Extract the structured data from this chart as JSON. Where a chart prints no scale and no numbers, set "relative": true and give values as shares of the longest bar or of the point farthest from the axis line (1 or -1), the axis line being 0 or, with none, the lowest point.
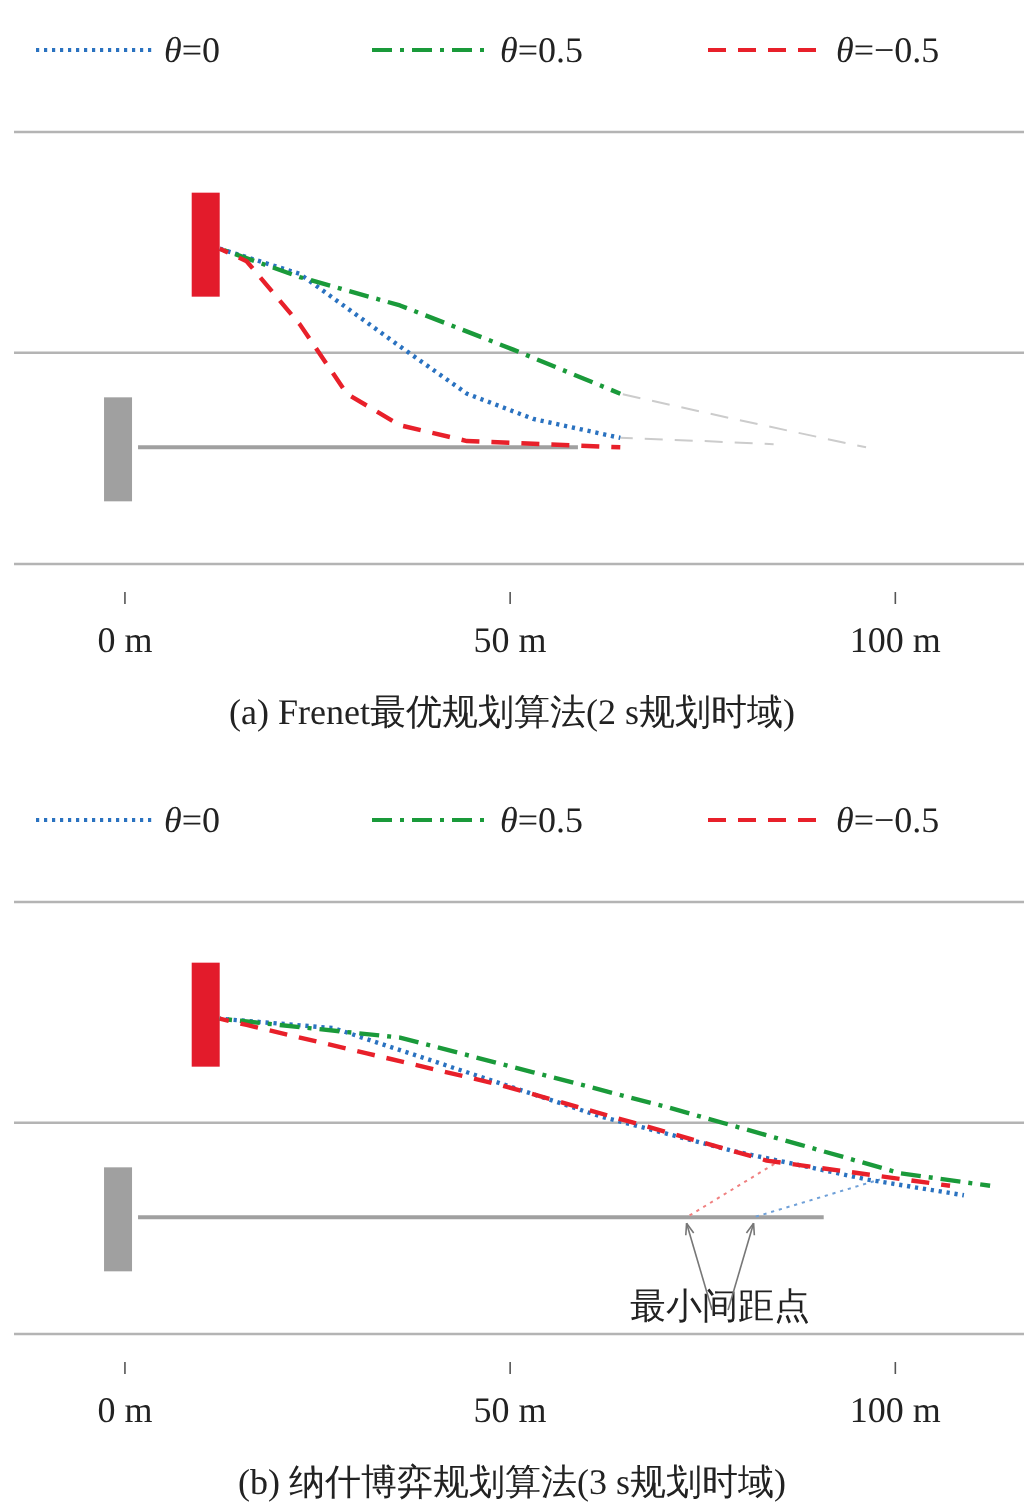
{
  "chart_data": [
    {
      "type": "line",
      "relative": true,
      "title": "(a) Frenet最优规划算法(2 s规划时域)",
      "xlim": [
        -14.4,
        116.7
      ],
      "xticks": [
        {
          "value": 0,
          "label": "0 m"
        },
        {
          "value": 50,
          "label": "50 m"
        },
        {
          "value": 100,
          "label": "100 m"
        }
      ],
      "tick_labels": "x",
      "legend": "top",
      "grid": false,
      "ref_lines": [
        {
          "axis": "y",
          "value": 1.37,
          "color": "#b4b4b4"
        },
        {
          "axis": "y",
          "value": 0.67,
          "color": "#b4b4b4"
        }
      ],
      "series": [
        {
          "name": "θ=0",
          "color": "#2a72c0",
          "line_style": "dotted",
          "x": [
            12.3,
            22.7,
            35.7,
            44.4,
            53,
            64.3
          ],
          "values": [
            1,
            0.92,
            0.69,
            0.54,
            0.46,
            0.4
          ]
        },
        {
          "name": "θ=0.5",
          "color": "#1a9a3a",
          "line_style": "dashdot",
          "x": [
            12.3,
            22.7,
            35.7,
            50.4,
            64.3
          ],
          "values": [
            1,
            0.91,
            0.82,
            0.68,
            0.54
          ]
        },
        {
          "name": "θ=−0.5",
          "color": "#e8202a",
          "line_style": "dashed",
          "x": [
            12.3,
            15.8,
            22.7,
            28.8,
            35.7,
            44.4,
            64.3
          ],
          "values": [
            1,
            0.96,
            0.76,
            0.54,
            0.44,
            0.39,
            0.37
          ]
        },
        {
          "color": "#a0a0a0",
          "line_style": "solid",
          "x": [
            1.7,
            58.8
          ],
          "values": [
            0.37,
            0.37
          ]
        },
        {
          "color": "#cccccc",
          "line_style": "dashed",
          "x": [
            64.3,
            79,
            96.2
          ],
          "values": [
            0.54,
            0.46,
            0.37
          ]
        },
        {
          "color": "#cccccc",
          "line_style": "dashed",
          "x": [
            64.3,
            75,
            84.2
          ],
          "values": [
            0.4,
            0.39,
            0.38
          ]
        }
      ]
    },
    {
      "type": "line",
      "relative": true,
      "title": "(b) 纳什博弈规划算法(3 s规划时域)",
      "xlim": [
        -14.4,
        116.7
      ],
      "xticks": [
        {
          "value": 0,
          "label": "0 m"
        },
        {
          "value": 50,
          "label": "50 m"
        },
        {
          "value": 100,
          "label": "100 m"
        }
      ],
      "tick_labels": "x",
      "legend": "top",
      "grid": false,
      "ref_lines": [
        {
          "axis": "y",
          "value": 1.37,
          "color": "#b4b4b4"
        },
        {
          "axis": "y",
          "value": 0.67,
          "color": "#b4b4b4"
        }
      ],
      "annotations": [
        "最小间距点"
      ],
      "series": [
        {
          "name": "θ=0",
          "color": "#2a72c0",
          "line_style": "dotted",
          "x": [
            12.3,
            27.1,
            44.4,
            61.7,
            79,
            96.3,
            108.9
          ],
          "values": [
            1,
            0.97,
            0.83,
            0.69,
            0.58,
            0.49,
            0.44
          ]
        },
        {
          "name": "θ=0.5",
          "color": "#1a9a3a",
          "line_style": "dashdot",
          "x": [
            12.3,
            35.7,
            53,
            70.3,
            87.7,
            100.6,
            112.3
          ],
          "values": [
            1,
            0.94,
            0.83,
            0.72,
            0.6,
            0.51,
            0.47
          ]
        },
        {
          "name": "θ=−0.5",
          "color": "#e8202a",
          "line_style": "dashed",
          "x": [
            12.3,
            15.8,
            31.4,
            48.7,
            66,
            83.3,
            107.1
          ],
          "values": [
            1,
            0.98,
            0.89,
            0.79,
            0.67,
            0.55,
            0.47
          ]
        },
        {
          "color": "#a0a0a0",
          "line_style": "solid",
          "x": [
            1.7,
            90.7
          ],
          "values": [
            0.37,
            0.37
          ]
        },
        {
          "color": "#f08080",
          "line_style": "dotted",
          "x": [
            72.9,
            85
          ],
          "values": [
            0.37,
            0.55
          ]
        },
        {
          "color": "#6fa0d8",
          "line_style": "dotted",
          "x": [
            81.6,
            98
          ],
          "values": [
            0.37,
            0.49
          ]
        }
      ]
    }
  ]
}
